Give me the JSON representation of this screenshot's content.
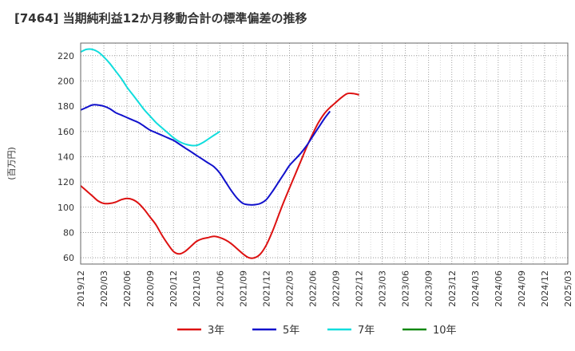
{
  "chart_data": {
    "type": "line",
    "title": "[7464]  当期純利益12か月移動合計の標準偏差の推移",
    "ylabel": "(百万円)",
    "xlabel": "",
    "ylim": [
      55,
      230
    ],
    "yticks": [
      60,
      80,
      100,
      120,
      140,
      160,
      180,
      200,
      220
    ],
    "xticks": [
      "2019/12",
      "2020/03",
      "2020/06",
      "2020/09",
      "2020/12",
      "2021/03",
      "2021/06",
      "2021/09",
      "2021/12",
      "2022/03",
      "2022/06",
      "2022/09",
      "2022/12",
      "2023/03",
      "2023/06",
      "2023/09",
      "2023/12",
      "2024/03",
      "2024/06",
      "2024/09",
      "2024/12",
      "2025/03"
    ],
    "grid": true,
    "legend_position": "bottom",
    "series": [
      {
        "name": "3年",
        "color": "#dd1111",
        "points": [
          [
            0,
            117
          ],
          [
            1,
            113
          ],
          [
            2,
            109
          ],
          [
            3,
            105
          ],
          [
            4,
            103
          ],
          [
            5,
            103
          ],
          [
            6,
            104
          ],
          [
            7,
            106
          ],
          [
            8,
            107
          ],
          [
            9,
            106
          ],
          [
            10,
            103
          ],
          [
            11,
            98
          ],
          [
            12,
            92
          ],
          [
            13,
            86
          ],
          [
            14,
            78
          ],
          [
            15,
            71
          ],
          [
            16,
            65
          ],
          [
            17,
            63
          ],
          [
            18,
            65
          ],
          [
            19,
            69
          ],
          [
            20,
            73
          ],
          [
            21,
            75
          ],
          [
            22,
            76
          ],
          [
            23,
            77
          ],
          [
            24,
            76
          ],
          [
            25,
            74
          ],
          [
            26,
            71
          ],
          [
            27,
            67
          ],
          [
            28,
            63
          ],
          [
            29,
            60
          ],
          [
            30,
            60
          ],
          [
            31,
            63
          ],
          [
            32,
            70
          ],
          [
            33,
            80
          ],
          [
            34,
            92
          ],
          [
            35,
            104
          ],
          [
            36,
            115
          ],
          [
            37,
            126
          ],
          [
            38,
            137
          ],
          [
            39,
            148
          ],
          [
            40,
            158
          ],
          [
            41,
            167
          ],
          [
            42,
            174
          ],
          [
            43,
            179
          ],
          [
            44,
            183
          ],
          [
            45,
            187
          ],
          [
            46,
            190
          ],
          [
            47,
            190
          ],
          [
            48,
            189
          ]
        ]
      },
      {
        "name": "5年",
        "color": "#1111cc",
        "points": [
          [
            0,
            177
          ],
          [
            1,
            179
          ],
          [
            2,
            181
          ],
          [
            3,
            181
          ],
          [
            4,
            180
          ],
          [
            5,
            178
          ],
          [
            6,
            175
          ],
          [
            7,
            173
          ],
          [
            8,
            171
          ],
          [
            9,
            169
          ],
          [
            10,
            167
          ],
          [
            11,
            164
          ],
          [
            12,
            161
          ],
          [
            13,
            159
          ],
          [
            14,
            157
          ],
          [
            15,
            155
          ],
          [
            16,
            153
          ],
          [
            17,
            150
          ],
          [
            18,
            147
          ],
          [
            19,
            144
          ],
          [
            20,
            141
          ],
          [
            21,
            138
          ],
          [
            22,
            135
          ],
          [
            23,
            132
          ],
          [
            24,
            127
          ],
          [
            25,
            120
          ],
          [
            26,
            113
          ],
          [
            27,
            107
          ],
          [
            28,
            103
          ],
          [
            29,
            102
          ],
          [
            30,
            102
          ],
          [
            31,
            103
          ],
          [
            32,
            106
          ],
          [
            33,
            112
          ],
          [
            34,
            119
          ],
          [
            35,
            126
          ],
          [
            36,
            133
          ],
          [
            37,
            138
          ],
          [
            38,
            143
          ],
          [
            39,
            149
          ],
          [
            40,
            156
          ],
          [
            41,
            163
          ],
          [
            42,
            170
          ],
          [
            43,
            176
          ]
        ]
      },
      {
        "name": "7年",
        "color": "#11dddd",
        "points": [
          [
            0,
            223
          ],
          [
            1,
            225
          ],
          [
            2,
            225
          ],
          [
            3,
            223
          ],
          [
            4,
            219
          ],
          [
            5,
            214
          ],
          [
            6,
            208
          ],
          [
            7,
            202
          ],
          [
            8,
            195
          ],
          [
            9,
            189
          ],
          [
            10,
            183
          ],
          [
            11,
            177
          ],
          [
            12,
            172
          ],
          [
            13,
            167
          ],
          [
            14,
            163
          ],
          [
            15,
            159
          ],
          [
            16,
            155
          ],
          [
            17,
            152
          ],
          [
            18,
            150
          ],
          [
            19,
            149
          ],
          [
            20,
            149
          ],
          [
            21,
            151
          ],
          [
            22,
            154
          ],
          [
            23,
            157
          ],
          [
            24,
            160
          ]
        ]
      },
      {
        "name": "10年",
        "color": "#118811",
        "points": []
      }
    ]
  },
  "legend": [
    {
      "label": "3年",
      "color": "#dd1111"
    },
    {
      "label": "5年",
      "color": "#1111cc"
    },
    {
      "label": "7年",
      "color": "#11dddd"
    },
    {
      "label": "10年",
      "color": "#118811"
    }
  ]
}
